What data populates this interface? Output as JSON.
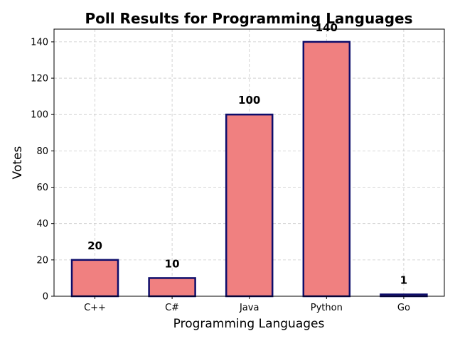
{
  "chart_data": {
    "type": "bar",
    "title": "Poll Results for Programming Languages",
    "xlabel": "Programming Languages",
    "ylabel": "Votes",
    "categories": [
      "C++",
      "C#",
      "Java",
      "Python",
      "Go"
    ],
    "values": [
      20,
      10,
      100,
      140,
      1
    ],
    "data_labels": [
      "20",
      "10",
      "100",
      "140",
      "1"
    ],
    "yticks": [
      0,
      20,
      40,
      60,
      80,
      100,
      120,
      140
    ],
    "ylim": [
      0,
      147
    ],
    "grid": true,
    "bar_color": "#f08080",
    "bar_edge_color": "#0d0d6b"
  }
}
